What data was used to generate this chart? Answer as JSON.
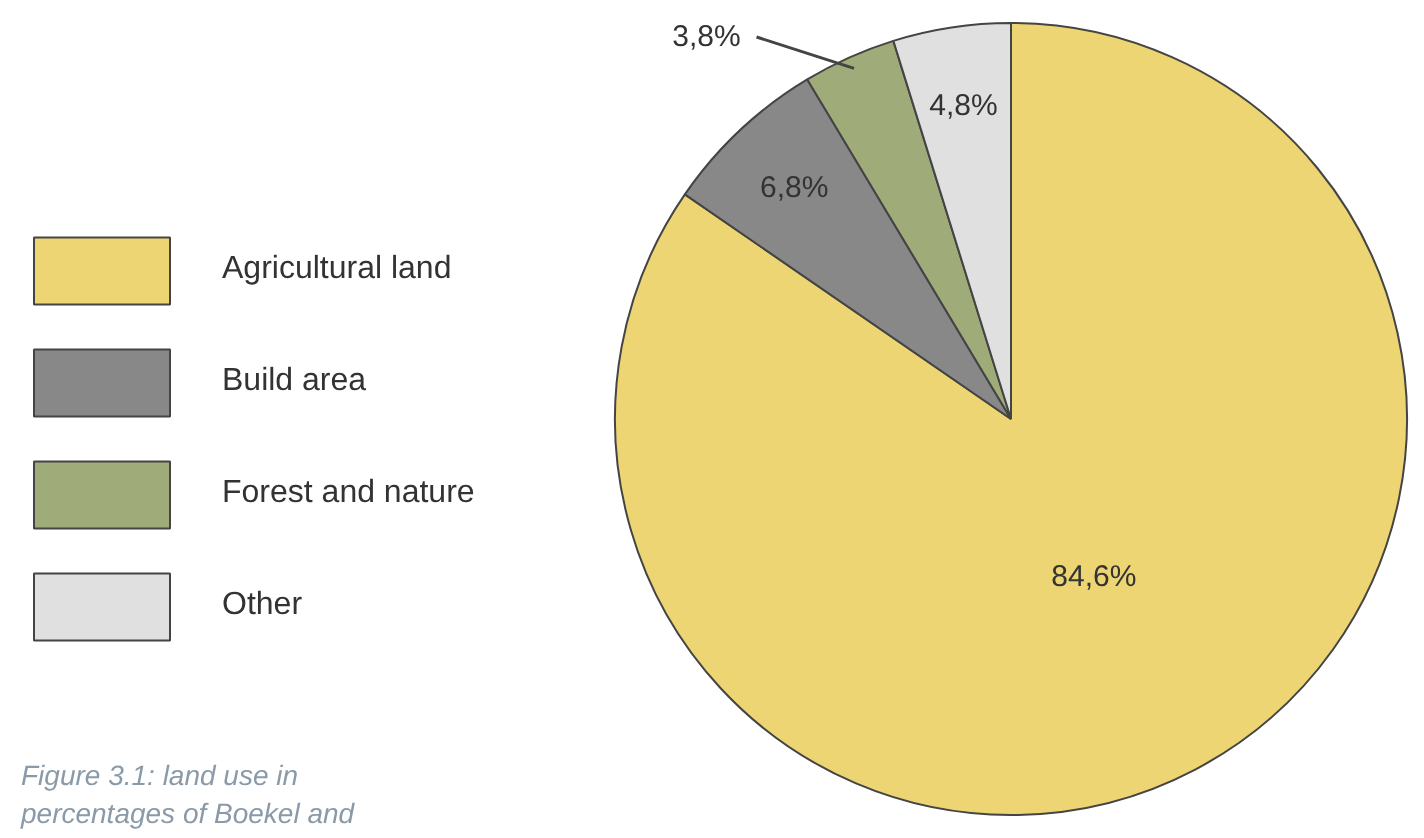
{
  "chart_data": {
    "type": "pie",
    "categories": [
      "Agricultural land",
      "Build area",
      "Forest and nature",
      "Other"
    ],
    "values": [
      84.6,
      6.8,
      3.8,
      4.8
    ],
    "value_labels": [
      "84,6%",
      "6,8%",
      "3,8%",
      "4,8%"
    ],
    "colors": [
      "#edd574",
      "#888888",
      "#9fab78",
      "#e0e0e0"
    ],
    "legend": "left",
    "annotations": [
      "Figure 3.1: land use in percentages of Boekel and"
    ]
  }
}
